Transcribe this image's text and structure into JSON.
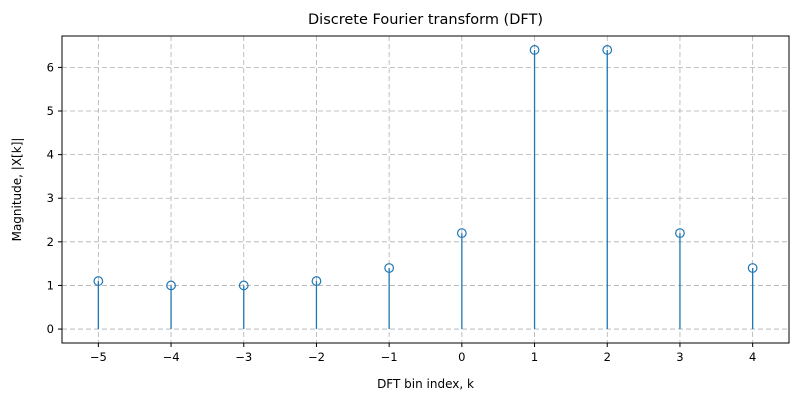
{
  "chart_data": {
    "type": "stem",
    "title": "Discrete Fourier transform (DFT)",
    "xlabel": "DFT bin index, k",
    "ylabel": "Magnitude, |X[k]|",
    "x": [
      -5,
      -4,
      -3,
      -2,
      -1,
      0,
      1,
      2,
      3,
      4
    ],
    "y": [
      1.1,
      1.0,
      1.0,
      1.1,
      1.4,
      2.2,
      6.4,
      6.4,
      2.2,
      1.4
    ],
    "xlim": [
      -5.5,
      4.5
    ],
    "ylim": [
      -0.32,
      6.72
    ],
    "xticks": [
      -5,
      -4,
      -3,
      -2,
      -1,
      0,
      1,
      2,
      3,
      4
    ],
    "xtick_labels": [
      "−5",
      "−4",
      "−3",
      "−2",
      "−1",
      "0",
      "1",
      "2",
      "3",
      "4"
    ],
    "yticks": [
      0,
      1,
      2,
      3,
      4,
      5,
      6
    ],
    "ytick_labels": [
      "0",
      "1",
      "2",
      "3",
      "4",
      "5",
      "6"
    ],
    "grid": true,
    "color": "#1f77b4"
  }
}
